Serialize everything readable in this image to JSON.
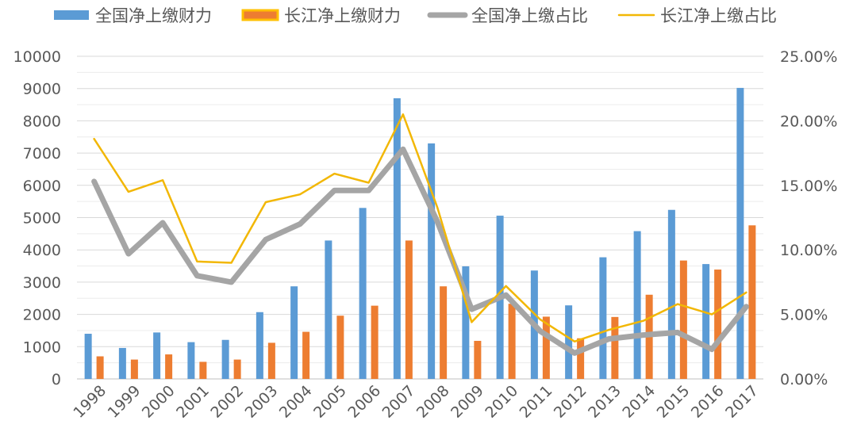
{
  "chart_data": {
    "type": "bar",
    "categories": [
      "1998",
      "1999",
      "2000",
      "2001",
      "2002",
      "2003",
      "2004",
      "2005",
      "2006",
      "2007",
      "2008",
      "2009",
      "2010",
      "2011",
      "2012",
      "2013",
      "2014",
      "2015",
      "2016",
      "2017"
    ],
    "series": [
      {
        "name": "全国净上缴财力",
        "kind": "bar",
        "axis": "left",
        "color": "#5b9bd5",
        "values": [
          1400,
          960,
          1440,
          1140,
          1210,
          2070,
          2870,
          4290,
          5300,
          8700,
          7300,
          3490,
          5060,
          3360,
          2280,
          3770,
          4580,
          5240,
          3560,
          9020
        ]
      },
      {
        "name": "长江净上缴财力",
        "kind": "bar",
        "axis": "left",
        "color": "#ed7d31",
        "values": [
          700,
          600,
          760,
          530,
          600,
          1120,
          1460,
          1960,
          2270,
          4290,
          2870,
          1180,
          2330,
          1930,
          1260,
          1920,
          2610,
          3670,
          3390,
          4760
        ]
      },
      {
        "name": "全国净上缴占比",
        "kind": "line",
        "axis": "right",
        "color": "#a5a5a5",
        "values": [
          15.3,
          9.7,
          12.1,
          8.0,
          7.5,
          10.8,
          12.0,
          14.6,
          14.6,
          17.8,
          12.2,
          5.4,
          6.5,
          3.7,
          2.0,
          3.1,
          3.4,
          3.6,
          2.3,
          5.6
        ]
      },
      {
        "name": "长江净上缴占比",
        "kind": "line",
        "axis": "right",
        "color": "#f2b705",
        "values": [
          18.6,
          14.5,
          15.4,
          9.1,
          9.0,
          13.7,
          14.3,
          15.9,
          15.2,
          20.5,
          13.3,
          4.4,
          7.2,
          4.6,
          2.9,
          3.8,
          4.5,
          5.8,
          5.0,
          6.7
        ]
      }
    ],
    "ylim_left": [
      0,
      10000
    ],
    "left_ticks": [
      "0",
      "1000",
      "2000",
      "3000",
      "4000",
      "5000",
      "6000",
      "7000",
      "8000",
      "9000",
      "10000"
    ],
    "ylim_right": [
      0,
      25
    ],
    "right_ticks": [
      "0.00%",
      "5.00%",
      "10.00%",
      "15.00%",
      "20.00%",
      "25.00%"
    ],
    "legend_position": "top",
    "grid": true
  }
}
